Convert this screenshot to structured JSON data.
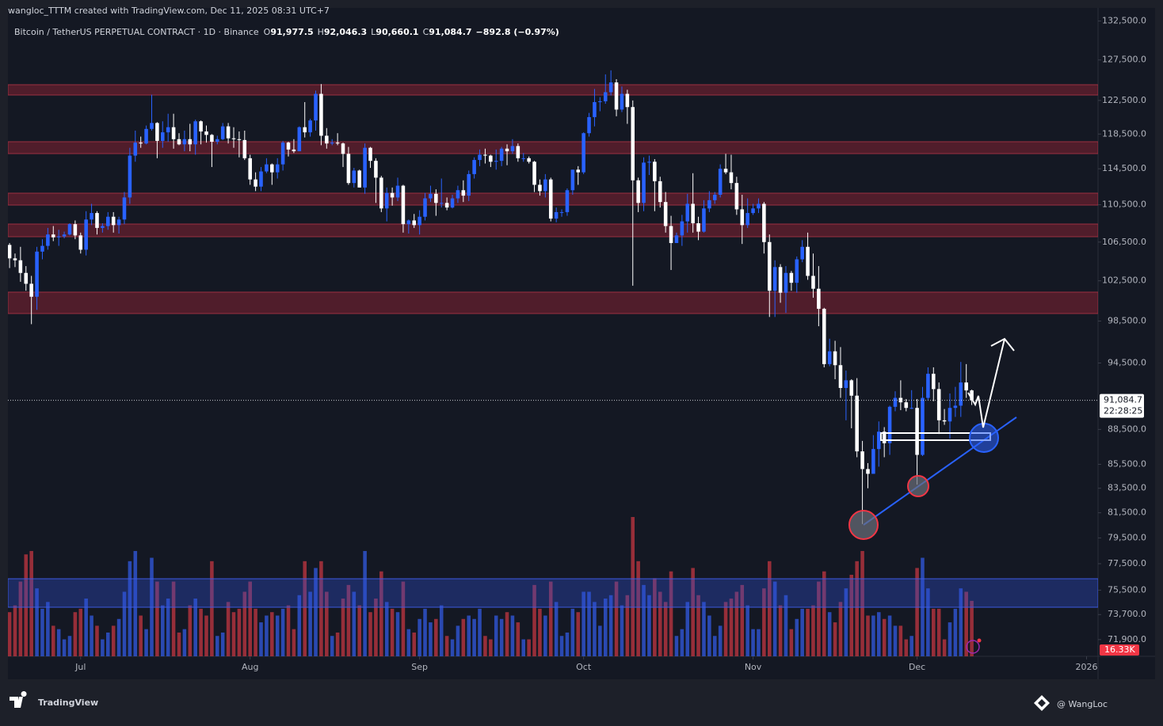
{
  "header": {
    "credit": "wangloc_TTTM created with TradingView.com, Dec 11, 2025 08:31 UTC+7",
    "symbol": "Bitcoin / TetherUS PERPETUAL CONTRACT · 1D · Binance",
    "ohlc": [
      {
        "key": "O",
        "value": "91,977.5"
      },
      {
        "key": "H",
        "value": "92,046.3"
      },
      {
        "key": "L",
        "value": "90,660.1"
      },
      {
        "key": "C",
        "value": "91,084.7"
      }
    ],
    "change": "−892.8 (−0.97%)"
  },
  "footer": {
    "brand": "TradingView",
    "author": "@ WangLoc"
  },
  "chart_data": {
    "type": "candlestick",
    "log_scale": true,
    "up_color": "#2962ff",
    "down_color": "#ffffff",
    "volume_up_color": "#2f56d6",
    "volume_down_color": "#b8343f",
    "open": [
      106200,
      104800,
      104600,
      103300,
      102200,
      100900,
      105500,
      106100,
      107300,
      107000,
      107100,
      107300,
      108400,
      107200,
      105700,
      108900,
      109600,
      108000,
      108200,
      109200,
      108300,
      108900,
      111300,
      116000,
      117500,
      117400,
      119100,
      119800,
      117700,
      118700,
      119300,
      117900,
      117300,
      117900,
      117300,
      120000,
      118800,
      118400,
      117600,
      117900,
      119400,
      118000,
      117900,
      117800,
      115700,
      113300,
      112500,
      114200,
      115000,
      114100,
      115000,
      117500,
      116700,
      116500,
      119300,
      118700,
      120100,
      123300,
      118300,
      117400,
      117500,
      117400,
      116200,
      112900,
      114300,
      112400,
      116900,
      115400,
      113500,
      110100,
      111800,
      111300,
      112600,
      108400,
      108800,
      108300,
      109200,
      111200,
      111700,
      110700,
      110700,
      110200,
      111200,
      112100,
      111500,
      113900,
      115500,
      116100,
      116000,
      115300,
      115400,
      116800,
      116500,
      117100,
      115700,
      115700,
      115300,
      112700,
      112000,
      113300,
      109000,
      109700,
      109700,
      112100,
      114400,
      114100,
      118600,
      120500,
      122300,
      122400,
      123500,
      124700,
      121400,
      123300,
      121700,
      113200,
      110700,
      115200,
      115300,
      113100,
      110800,
      108200,
      106400,
      107200,
      108700,
      110600,
      108500,
      107600,
      110100,
      111000,
      111600,
      114500,
      114100,
      112900,
      110000,
      108300,
      109600,
      110100,
      110600,
      106500,
      101500,
      103900,
      101300,
      103300,
      102300,
      104700,
      106000,
      103000,
      101700,
      99700,
      94400,
      95600,
      94300,
      92200,
      92900,
      91500,
      86600,
      85100,
      84700,
      86800,
      88300,
      87300,
      90500,
      91300,
      90900,
      90400,
      90400,
      86300,
      91300,
      93500,
      92100,
      89300,
      89200,
      90400,
      90600,
      92700,
      91977.5
    ],
    "high": [
      106400,
      105300,
      106000,
      104000,
      103000,
      106000,
      106800,
      108000,
      108200,
      107800,
      107600,
      108500,
      108800,
      107500,
      109800,
      110600,
      109800,
      108500,
      109700,
      109700,
      109200,
      111900,
      116900,
      118900,
      118200,
      119500,
      123200,
      119900,
      120000,
      120900,
      120900,
      118600,
      118900,
      119700,
      120200,
      120100,
      119500,
      118500,
      118300,
      119800,
      119800,
      119300,
      118800,
      118900,
      116100,
      114100,
      114700,
      115700,
      115100,
      115700,
      117700,
      117600,
      117900,
      119400,
      122300,
      120300,
      123700,
      124500,
      119200,
      117900,
      118600,
      117500,
      117000,
      114600,
      114400,
      117400,
      117000,
      115700,
      113700,
      112400,
      112400,
      113500,
      112700,
      108900,
      109500,
      109900,
      111800,
      112600,
      112200,
      113400,
      111300,
      111600,
      112600,
      113200,
      114300,
      115800,
      116700,
      116800,
      116100,
      116700,
      117000,
      117300,
      117900,
      117400,
      116300,
      115900,
      115400,
      113300,
      113900,
      113500,
      110200,
      110000,
      112300,
      114400,
      114800,
      118700,
      121000,
      123900,
      122900,
      125700,
      126200,
      125100,
      124200,
      123800,
      122500,
      113500,
      115800,
      116000,
      115600,
      113600,
      111900,
      109300,
      107500,
      109400,
      111700,
      114000,
      109200,
      111000,
      112000,
      111900,
      115000,
      116200,
      116100,
      113600,
      111600,
      111200,
      110600,
      111200,
      110800,
      107300,
      104600,
      104200,
      104000,
      103500,
      105000,
      106700,
      107500,
      105300,
      104000,
      99800,
      96800,
      96600,
      96000,
      93800,
      93000,
      93100,
      87500,
      85600,
      88000,
      89200,
      88700,
      90600,
      91900,
      92900,
      91200,
      92000,
      91200,
      92300,
      94100,
      94100,
      92700,
      90300,
      91700,
      92300,
      94600,
      94400,
      92046.3
    ],
    "low": [
      103800,
      103900,
      102400,
      101500,
      98200,
      99600,
      104700,
      105700,
      106600,
      106100,
      106900,
      107200,
      106800,
      105300,
      105100,
      108300,
      107300,
      107500,
      107800,
      107500,
      107400,
      108400,
      110600,
      115300,
      116900,
      117300,
      118900,
      115700,
      116900,
      117600,
      116800,
      117200,
      116500,
      116500,
      116100,
      117300,
      117500,
      114700,
      117300,
      117800,
      117400,
      116900,
      115800,
      115500,
      112700,
      112000,
      112000,
      114000,
      112700,
      113400,
      114300,
      115900,
      116300,
      116500,
      118100,
      118200,
      118900,
      117200,
      116800,
      117200,
      117200,
      114700,
      112700,
      112400,
      112400,
      111700,
      114600,
      110700,
      109700,
      108700,
      110400,
      110900,
      107500,
      107400,
      108000,
      107300,
      108800,
      110800,
      109300,
      110200,
      109900,
      110100,
      110700,
      110800,
      110900,
      113400,
      114800,
      115100,
      114700,
      114400,
      114800,
      114900,
      116200,
      115300,
      115300,
      115100,
      111900,
      111500,
      111300,
      108700,
      108600,
      109200,
      109300,
      111600,
      112700,
      113900,
      118200,
      119400,
      121200,
      122100,
      123100,
      120600,
      121100,
      119700,
      102000,
      109700,
      109800,
      113800,
      109800,
      110200,
      107500,
      103600,
      106400,
      106100,
      107500,
      107500,
      106700,
      107500,
      109700,
      110600,
      111300,
      113900,
      112200,
      109400,
      106300,
      108000,
      109400,
      109600,
      105300,
      98900,
      98900,
      100300,
      99300,
      101500,
      101300,
      104400,
      102600,
      100800,
      98000,
      94100,
      94200,
      93000,
      91300,
      89300,
      88600,
      86100,
      80600,
      83500,
      84700,
      85300,
      86100,
      86300,
      90100,
      90200,
      90100,
      90300,
      83800,
      86200,
      91100,
      91000,
      88100,
      88900,
      87700,
      89600,
      89600,
      91300,
      90660.1
    ],
    "close": [
      104800,
      104600,
      103300,
      102200,
      100900,
      105500,
      106100,
      107300,
      107000,
      107100,
      107300,
      108400,
      107200,
      105700,
      108900,
      109600,
      108000,
      108200,
      109200,
      108300,
      108900,
      111300,
      116000,
      117500,
      117400,
      119100,
      119800,
      117700,
      118700,
      119300,
      117900,
      117300,
      117900,
      117300,
      120000,
      118800,
      118400,
      117600,
      117900,
      119400,
      118000,
      117900,
      117800,
      115700,
      113300,
      112500,
      114200,
      115000,
      114100,
      115000,
      117500,
      116700,
      116500,
      119300,
      118700,
      120100,
      123300,
      118300,
      117400,
      117500,
      117400,
      116200,
      112900,
      114300,
      112400,
      116900,
      115400,
      113500,
      110100,
      111800,
      111300,
      112600,
      108400,
      108800,
      108300,
      109200,
      111200,
      111700,
      110700,
      110700,
      110200,
      111200,
      112100,
      111500,
      113900,
      115500,
      116100,
      116000,
      115300,
      115400,
      116800,
      116500,
      117100,
      115700,
      115700,
      115300,
      112700,
      112000,
      113300,
      109000,
      109700,
      109700,
      112100,
      114400,
      114100,
      118600,
      120500,
      122300,
      122400,
      123500,
      124700,
      121400,
      123300,
      121700,
      113200,
      110700,
      115200,
      115300,
      113100,
      110800,
      108200,
      106400,
      107200,
      108700,
      110600,
      108500,
      107600,
      110100,
      111000,
      111600,
      114500,
      114100,
      112900,
      110000,
      108300,
      109600,
      110100,
      110600,
      106500,
      101500,
      103900,
      101300,
      103300,
      102300,
      104700,
      106000,
      103000,
      101700,
      99700,
      94400,
      95600,
      94300,
      92200,
      92900,
      91500,
      86600,
      85100,
      84700,
      86800,
      88300,
      87300,
      90500,
      91300,
      90900,
      90400,
      90400,
      86300,
      91300,
      93500,
      92100,
      89300,
      89200,
      90400,
      90600,
      92700,
      91977.5,
      91084.7
    ],
    "volume": [
      13000,
      15000,
      22000,
      30000,
      31000,
      20000,
      14000,
      16000,
      9000,
      8000,
      5000,
      6000,
      13000,
      14000,
      17000,
      12000,
      9000,
      5000,
      7000,
      9000,
      11000,
      19000,
      28000,
      31000,
      12000,
      8000,
      29000,
      22000,
      15000,
      17000,
      22000,
      7000,
      8000,
      15000,
      17000,
      14000,
      12000,
      28000,
      6000,
      7000,
      16000,
      13000,
      14000,
      19000,
      22000,
      14000,
      10000,
      12000,
      13000,
      12000,
      14000,
      15000,
      8000,
      18000,
      28000,
      19000,
      26000,
      28000,
      19000,
      6000,
      7000,
      17000,
      21000,
      19000,
      15000,
      31000,
      13000,
      17000,
      25000,
      16000,
      14000,
      13000,
      22000,
      8000,
      7000,
      11000,
      14000,
      10000,
      11000,
      15000,
      6000,
      5000,
      9000,
      11000,
      12000,
      11000,
      14000,
      6000,
      5000,
      12000,
      11000,
      13000,
      12000,
      10000,
      5000,
      5000,
      21000,
      14000,
      12000,
      22000,
      16000,
      6000,
      7000,
      14000,
      13000,
      19000,
      19000,
      16000,
      9000,
      17000,
      18000,
      22000,
      15000,
      18000,
      41000,
      28000,
      21000,
      18000,
      23000,
      19000,
      16000,
      25000,
      6000,
      8000,
      16000,
      26000,
      18000,
      16000,
      12000,
      6000,
      9000,
      16000,
      17000,
      19000,
      21000,
      15000,
      8000,
      8000,
      20000,
      28000,
      22000,
      15000,
      18000,
      8000,
      11000,
      14000,
      14000,
      15000,
      22000,
      25000,
      13000,
      10000,
      16000,
      20000,
      24000,
      28000,
      31000,
      12000,
      12000,
      13000,
      11000,
      12000,
      9000,
      9000,
      5000,
      6000,
      26000,
      29000,
      20000,
      14000,
      14000,
      5000,
      10000,
      14000,
      20000,
      19000,
      16330
    ],
    "volume_last_label": "16.33K",
    "volume_ylim": [
      0,
      46600
    ],
    "last_price_label": "91,084.7",
    "countdown": "22:28:25",
    "xlim": [
      -0.3,
      199.1
    ],
    "xticks": [
      {
        "value": 13,
        "label": "Jul"
      },
      {
        "value": 44,
        "label": "Aug"
      },
      {
        "value": 75,
        "label": "Sep"
      },
      {
        "value": 105,
        "label": "Oct"
      },
      {
        "value": 136,
        "label": "Nov"
      },
      {
        "value": 166,
        "label": "Dec"
      },
      {
        "value": 197,
        "label": "2026"
      }
    ],
    "ylim": [
      70720,
      134230
    ],
    "yticks": [
      {
        "value": 132500,
        "label": "132,500.0"
      },
      {
        "value": 127500,
        "label": "127,500.0"
      },
      {
        "value": 122500,
        "label": "122,500.0"
      },
      {
        "value": 118500,
        "label": "118,500.0"
      },
      {
        "value": 114500,
        "label": "114,500.0"
      },
      {
        "value": 110500,
        "label": "110,500.0"
      },
      {
        "value": 106500,
        "label": "106,500.0"
      },
      {
        "value": 102500,
        "label": "102,500.0"
      },
      {
        "value": 98500,
        "label": "98,500.0"
      },
      {
        "value": 94500,
        "label": "94,500.0"
      },
      {
        "value": 88500,
        "label": "88,500.0"
      },
      {
        "value": 85500,
        "label": "85,500.0"
      },
      {
        "value": 83500,
        "label": "83,500.0"
      },
      {
        "value": 81500,
        "label": "81,500.0"
      },
      {
        "value": 79500,
        "label": "79,500.0"
      },
      {
        "value": 77500,
        "label": "77,500.0"
      },
      {
        "value": 75500,
        "label": "75,500.0"
      },
      {
        "value": 73700,
        "label": "73,700.0"
      },
      {
        "value": 71900,
        "label": "71,900.0"
      }
    ]
  }
}
